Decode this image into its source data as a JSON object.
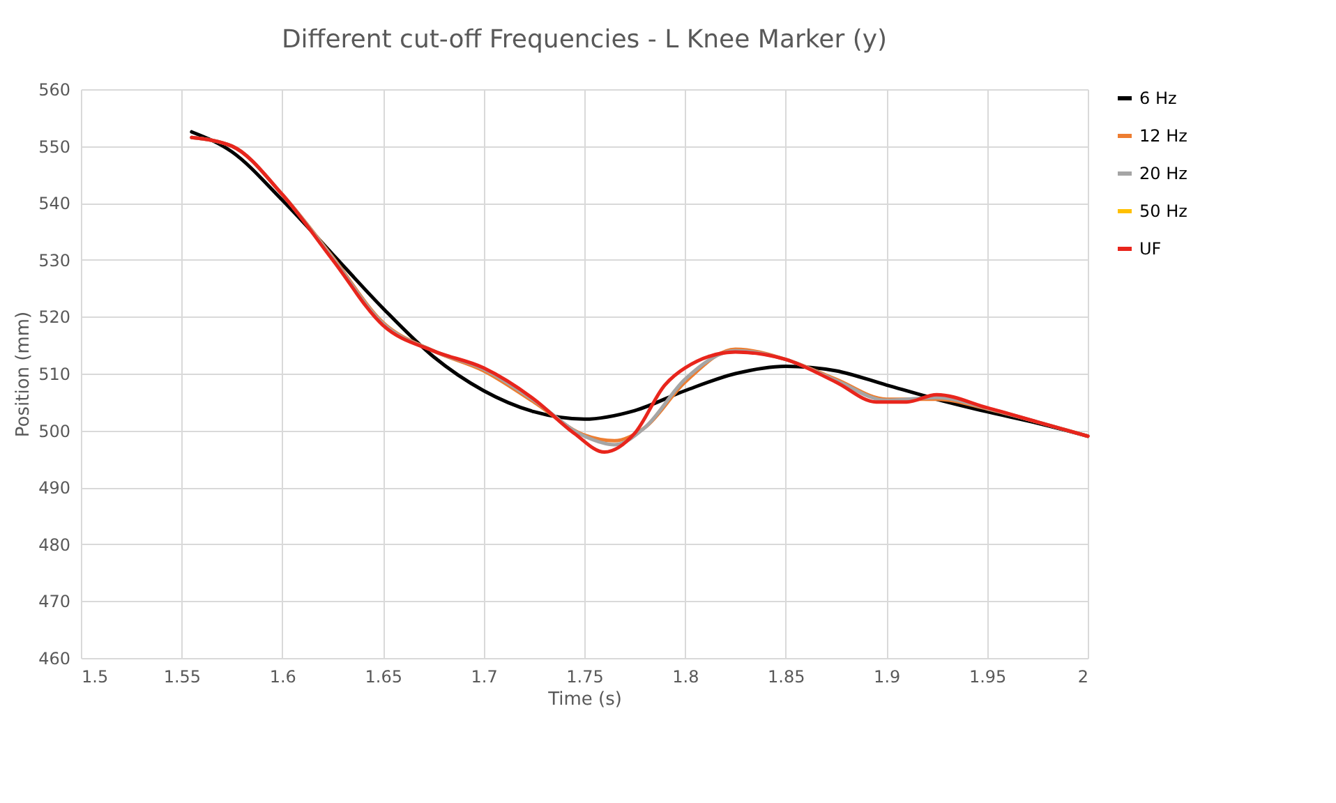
{
  "chart_data": {
    "type": "line",
    "title": "Different cut-off Frequencies - L Knee Marker (y)",
    "xlabel": "Time (s)",
    "ylabel": "Position (mm)",
    "xlim": [
      1.5,
      2
    ],
    "xticks": [
      1.5,
      1.55,
      1.6,
      1.65,
      1.7,
      1.75,
      1.8,
      1.85,
      1.9,
      1.95,
      2
    ],
    "ylim": [
      460,
      560
    ],
    "yticks": [
      460,
      470,
      480,
      490,
      500,
      510,
      520,
      530,
      540,
      550,
      560
    ],
    "grid": true,
    "legend": "right",
    "marker": "none",
    "line_style": "solid",
    "series": [
      {
        "name": "6 Hz",
        "color": "#000000",
        "x": [
          1.555,
          1.575,
          1.6,
          1.625,
          1.65,
          1.675,
          1.7,
          1.725,
          1.75,
          1.775,
          1.8,
          1.825,
          1.85,
          1.875,
          1.9,
          1.925,
          1.95,
          1.975,
          2.0
        ],
        "values": [
          552.5,
          549,
          540.5,
          531,
          521.5,
          513,
          507,
          503.3,
          502,
          503.5,
          507,
          510,
          511.3,
          510.5,
          508,
          505.5,
          503.3,
          501.3,
          499
        ]
      },
      {
        "name": "12 Hz",
        "color": "#ed7d31",
        "x": [
          1.555,
          1.575,
          1.6,
          1.625,
          1.65,
          1.675,
          1.7,
          1.725,
          1.75,
          1.765,
          1.78,
          1.8,
          1.825,
          1.85,
          1.875,
          1.9,
          1.925,
          1.95,
          1.975,
          2.0
        ],
        "values": [
          551.5,
          550,
          541.5,
          530.5,
          519,
          514,
          510.5,
          505,
          499.2,
          498.2,
          500.5,
          508.5,
          514.3,
          512.5,
          509,
          505.5,
          505.5,
          503.8,
          501.5,
          499
        ]
      },
      {
        "name": "20 Hz",
        "color": "#a5a5a5",
        "x": [
          1.555,
          1.575,
          1.6,
          1.625,
          1.65,
          1.675,
          1.7,
          1.725,
          1.75,
          1.765,
          1.78,
          1.8,
          1.825,
          1.85,
          1.875,
          1.9,
          1.925,
          1.95,
          1.975,
          2.0
        ],
        "values": [
          551.5,
          550,
          541.5,
          530.3,
          518.8,
          514,
          510.8,
          505.3,
          499,
          497.5,
          500.5,
          509,
          514,
          512.5,
          508.8,
          505.3,
          505.8,
          503.9,
          501.5,
          499
        ]
      },
      {
        "name": "50 Hz",
        "color": "#ffc000"
      },
      {
        "name": "UF",
        "color": "#e8251c",
        "x": [
          1.555,
          1.575,
          1.6,
          1.625,
          1.65,
          1.675,
          1.7,
          1.725,
          1.745,
          1.76,
          1.775,
          1.79,
          1.8,
          1.825,
          1.85,
          1.875,
          1.895,
          1.91,
          1.925,
          1.95,
          1.975,
          2.0
        ],
        "values": [
          551.5,
          550,
          541.5,
          530,
          518.5,
          514,
          511,
          505.5,
          499.5,
          496.2,
          499.5,
          508,
          511,
          513.8,
          512.5,
          508.5,
          505,
          505,
          506.3,
          504,
          501.5,
          499
        ]
      }
    ]
  }
}
